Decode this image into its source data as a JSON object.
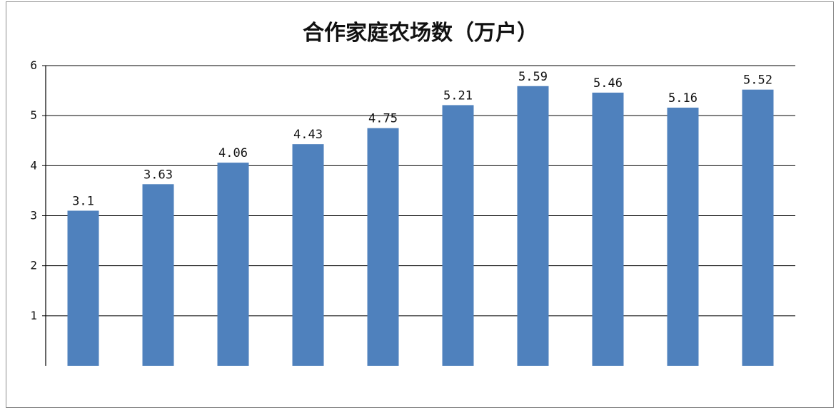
{
  "chart_data": {
    "type": "bar",
    "title": "合作家庭农场数（万户）",
    "categories": [
      "",
      "",
      "",
      "",
      "",
      "",
      "",
      "",
      "",
      ""
    ],
    "values": [
      3.1,
      3.63,
      4.06,
      4.43,
      4.75,
      5.21,
      5.59,
      5.46,
      5.16,
      5.52
    ],
    "data_labels": [
      "3.1",
      "3.63",
      "4.06",
      "4.43",
      "4.75",
      "5.21",
      "5.59",
      "5.46",
      "5.16",
      "5.52"
    ],
    "yticks": [
      "1",
      "2",
      "3",
      "4",
      "5",
      "6"
    ],
    "ylim": [
      0,
      6
    ],
    "xlabel": "",
    "ylabel": "",
    "grid": true,
    "legend": "none",
    "bar_color": "#4f81bd"
  }
}
